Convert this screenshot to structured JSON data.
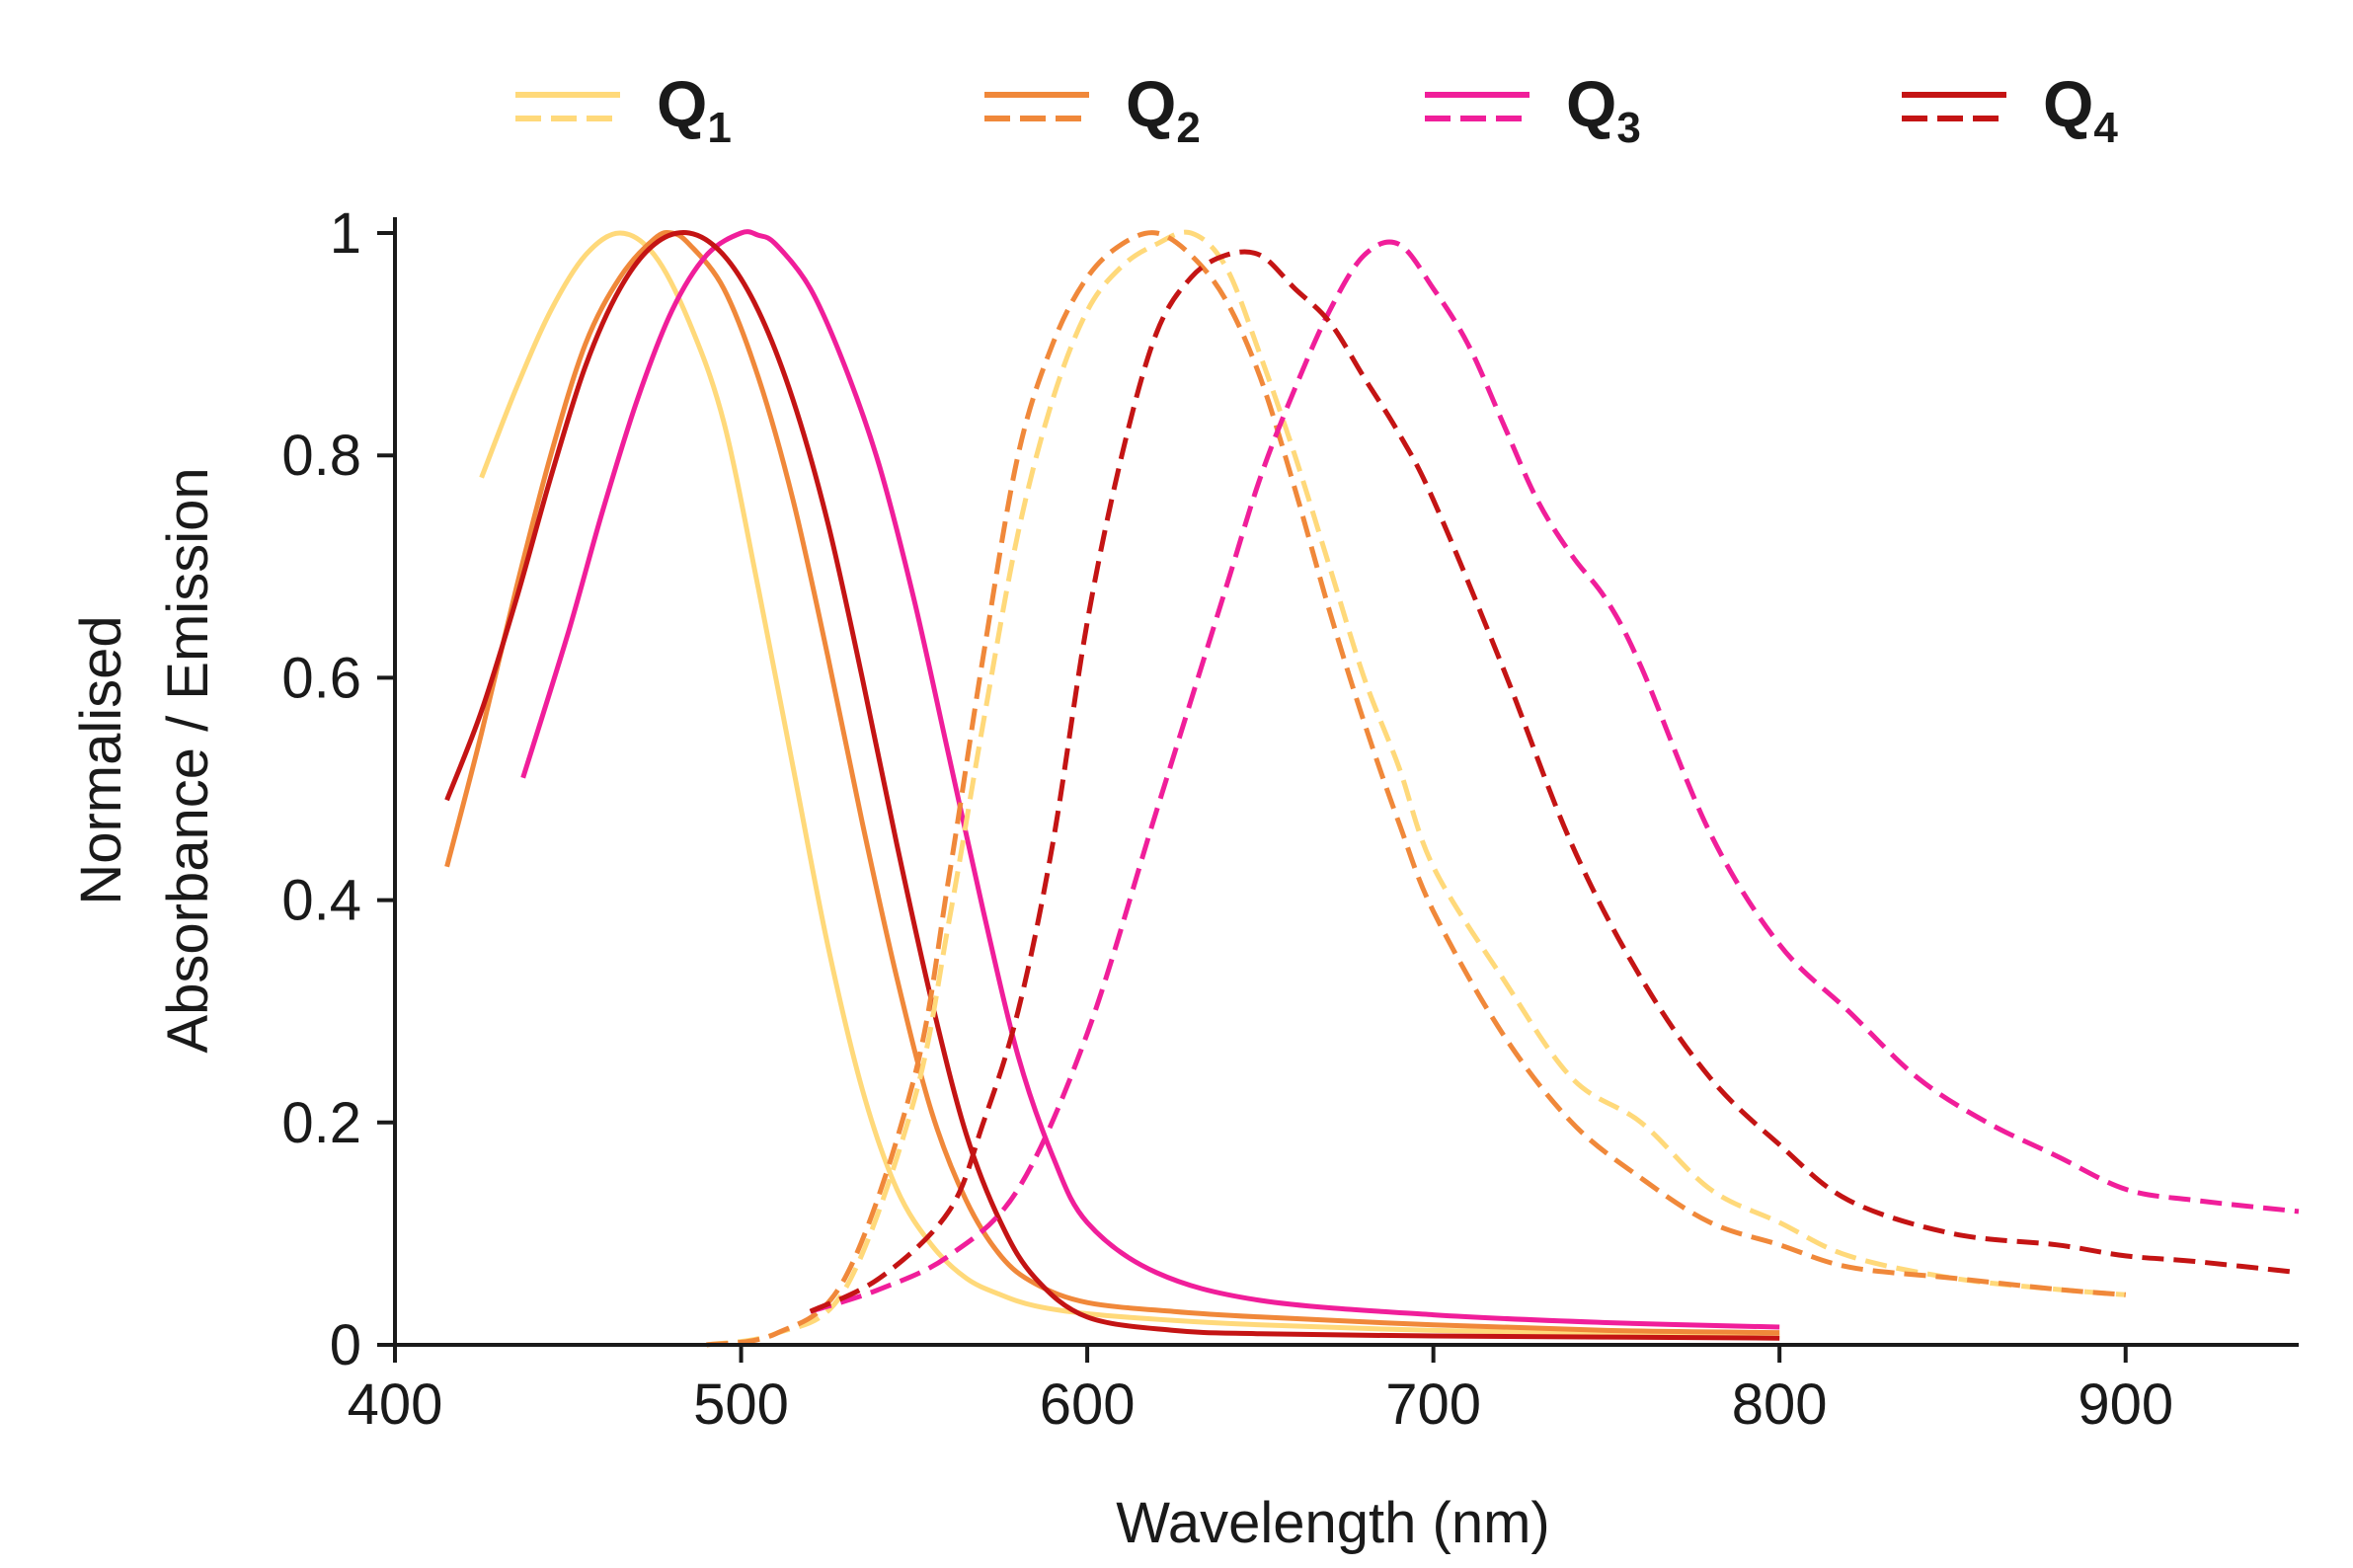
{
  "chart_data": {
    "type": "line",
    "xlabel": "Wavelength (nm)",
    "ylabel_lines": [
      "Normalised",
      "Absorbance / Emission"
    ],
    "xlim": [
      400,
      950
    ],
    "ylim": [
      0,
      1
    ],
    "xticks": [
      400,
      500,
      600,
      700,
      800,
      900
    ],
    "xtick_labels": [
      "400",
      "500",
      "600",
      "700",
      "800",
      "900"
    ],
    "yticks": [
      0,
      0.2,
      0.4,
      0.6,
      0.8,
      1
    ],
    "ytick_labels": [
      "0",
      "0.2",
      "0.4",
      "0.6",
      "0.8",
      "1"
    ],
    "grid": false,
    "legend_position": "top",
    "legend": [
      {
        "main": "Q",
        "sub": "1",
        "color": "#ffd97a"
      },
      {
        "main": "Q",
        "sub": "2",
        "color": "#f0883a"
      },
      {
        "main": "Q",
        "sub": "3",
        "color": "#f01e9a"
      },
      {
        "main": "Q",
        "sub": "4",
        "color": "#c41414"
      }
    ],
    "series": [
      {
        "legend": "Q1",
        "kind": "absorbance",
        "style": "solid",
        "color": "#ffd97a",
        "x": [
          425,
          435,
          445,
          455,
          465,
          475,
          485,
          495,
          505,
          515,
          525,
          535,
          545,
          555,
          565,
          575,
          585,
          600,
          625,
          650,
          700,
          750,
          800
        ],
        "y": [
          0.78,
          0.86,
          0.93,
          0.98,
          1.0,
          0.98,
          0.92,
          0.83,
          0.68,
          0.52,
          0.36,
          0.23,
          0.14,
          0.09,
          0.06,
          0.045,
          0.035,
          0.028,
          0.022,
          0.018,
          0.013,
          0.01,
          0.008
        ]
      },
      {
        "legend": "Q2",
        "kind": "absorbance",
        "style": "solid",
        "color": "#f0883a",
        "x": [
          415,
          425,
          435,
          445,
          455,
          465,
          475,
          480,
          485,
          495,
          505,
          515,
          525,
          535,
          545,
          555,
          565,
          575,
          585,
          600,
          625,
          650,
          700,
          750,
          800
        ],
        "y": [
          0.43,
          0.55,
          0.68,
          0.8,
          0.9,
          0.96,
          0.995,
          1.0,
          0.99,
          0.95,
          0.87,
          0.76,
          0.62,
          0.47,
          0.33,
          0.21,
          0.13,
          0.08,
          0.055,
          0.038,
          0.03,
          0.025,
          0.018,
          0.013,
          0.011
        ]
      },
      {
        "legend": "Q3",
        "kind": "absorbance",
        "style": "solid",
        "color": "#f01e9a",
        "x": [
          437,
          450,
          460,
          470,
          480,
          490,
          500,
          505,
          510,
          520,
          530,
          540,
          550,
          560,
          570,
          580,
          590,
          600,
          620,
          650,
          700,
          750,
          800
        ],
        "y": [
          0.51,
          0.64,
          0.75,
          0.85,
          0.93,
          0.98,
          1.0,
          0.998,
          0.99,
          0.95,
          0.88,
          0.79,
          0.67,
          0.53,
          0.39,
          0.26,
          0.17,
          0.11,
          0.065,
          0.04,
          0.027,
          0.02,
          0.016
        ]
      },
      {
        "legend": "Q4",
        "kind": "absorbance",
        "style": "solid",
        "color": "#c41414",
        "x": [
          415,
          425,
          435,
          445,
          455,
          465,
          475,
          485,
          495,
          505,
          515,
          525,
          535,
          545,
          555,
          565,
          575,
          585,
          600,
          625,
          650,
          700,
          750,
          800
        ],
        "y": [
          0.49,
          0.57,
          0.67,
          0.78,
          0.88,
          0.95,
          0.99,
          1.0,
          0.98,
          0.93,
          0.85,
          0.74,
          0.6,
          0.45,
          0.31,
          0.19,
          0.11,
          0.06,
          0.025,
          0.013,
          0.01,
          0.008,
          0.007,
          0.006
        ]
      },
      {
        "legend": "Q1",
        "kind": "emission",
        "style": "dashed",
        "color": "#ffd97a",
        "x": [
          490,
          510,
          530,
          550,
          560,
          570,
          580,
          590,
          600,
          610,
          620,
          630,
          640,
          650,
          660,
          670,
          680,
          690,
          700,
          720,
          740,
          760,
          780,
          800,
          820,
          850,
          880,
          900
        ],
        "y": [
          0.0,
          0.01,
          0.05,
          0.22,
          0.38,
          0.56,
          0.73,
          0.85,
          0.93,
          0.97,
          0.99,
          1.0,
          0.97,
          0.89,
          0.8,
          0.7,
          0.6,
          0.52,
          0.43,
          0.33,
          0.24,
          0.2,
          0.14,
          0.11,
          0.08,
          0.06,
          0.05,
          0.045
        ]
      },
      {
        "legend": "Q2",
        "kind": "emission",
        "style": "dashed",
        "color": "#f0883a",
        "x": [
          490,
          510,
          530,
          550,
          560,
          570,
          580,
          590,
          600,
          610,
          620,
          630,
          640,
          650,
          660,
          670,
          680,
          690,
          700,
          720,
          740,
          760,
          780,
          800,
          820,
          850,
          880,
          900
        ],
        "y": [
          0.0,
          0.01,
          0.06,
          0.24,
          0.42,
          0.62,
          0.8,
          0.9,
          0.96,
          0.99,
          1.0,
          0.98,
          0.94,
          0.87,
          0.77,
          0.66,
          0.56,
          0.47,
          0.39,
          0.28,
          0.2,
          0.15,
          0.11,
          0.09,
          0.07,
          0.06,
          0.05,
          0.045
        ]
      },
      {
        "legend": "Q3",
        "kind": "emission",
        "style": "dashed",
        "color": "#f01e9a",
        "x": [
          520,
          540,
          560,
          580,
          600,
          620,
          640,
          650,
          660,
          670,
          680,
          690,
          700,
          710,
          720,
          730,
          740,
          750,
          760,
          780,
          800,
          820,
          840,
          860,
          880,
          900,
          920,
          950
        ],
        "y": [
          0.03,
          0.05,
          0.08,
          0.14,
          0.28,
          0.48,
          0.68,
          0.78,
          0.86,
          0.93,
          0.98,
          0.99,
          0.95,
          0.9,
          0.83,
          0.76,
          0.71,
          0.67,
          0.61,
          0.46,
          0.36,
          0.3,
          0.24,
          0.2,
          0.17,
          0.14,
          0.13,
          0.12
        ]
      },
      {
        "legend": "Q4",
        "kind": "emission",
        "style": "dashed",
        "color": "#c41414",
        "x": [
          520,
          540,
          560,
          570,
          580,
          590,
          600,
          610,
          620,
          630,
          640,
          650,
          660,
          670,
          680,
          690,
          700,
          720,
          740,
          760,
          780,
          800,
          820,
          850,
          880,
          900,
          920,
          950
        ],
        "y": [
          0.03,
          0.06,
          0.12,
          0.2,
          0.3,
          0.45,
          0.65,
          0.8,
          0.91,
          0.96,
          0.98,
          0.98,
          0.95,
          0.92,
          0.87,
          0.82,
          0.76,
          0.61,
          0.45,
          0.33,
          0.24,
          0.18,
          0.13,
          0.1,
          0.09,
          0.08,
          0.075,
          0.065
        ]
      }
    ]
  }
}
